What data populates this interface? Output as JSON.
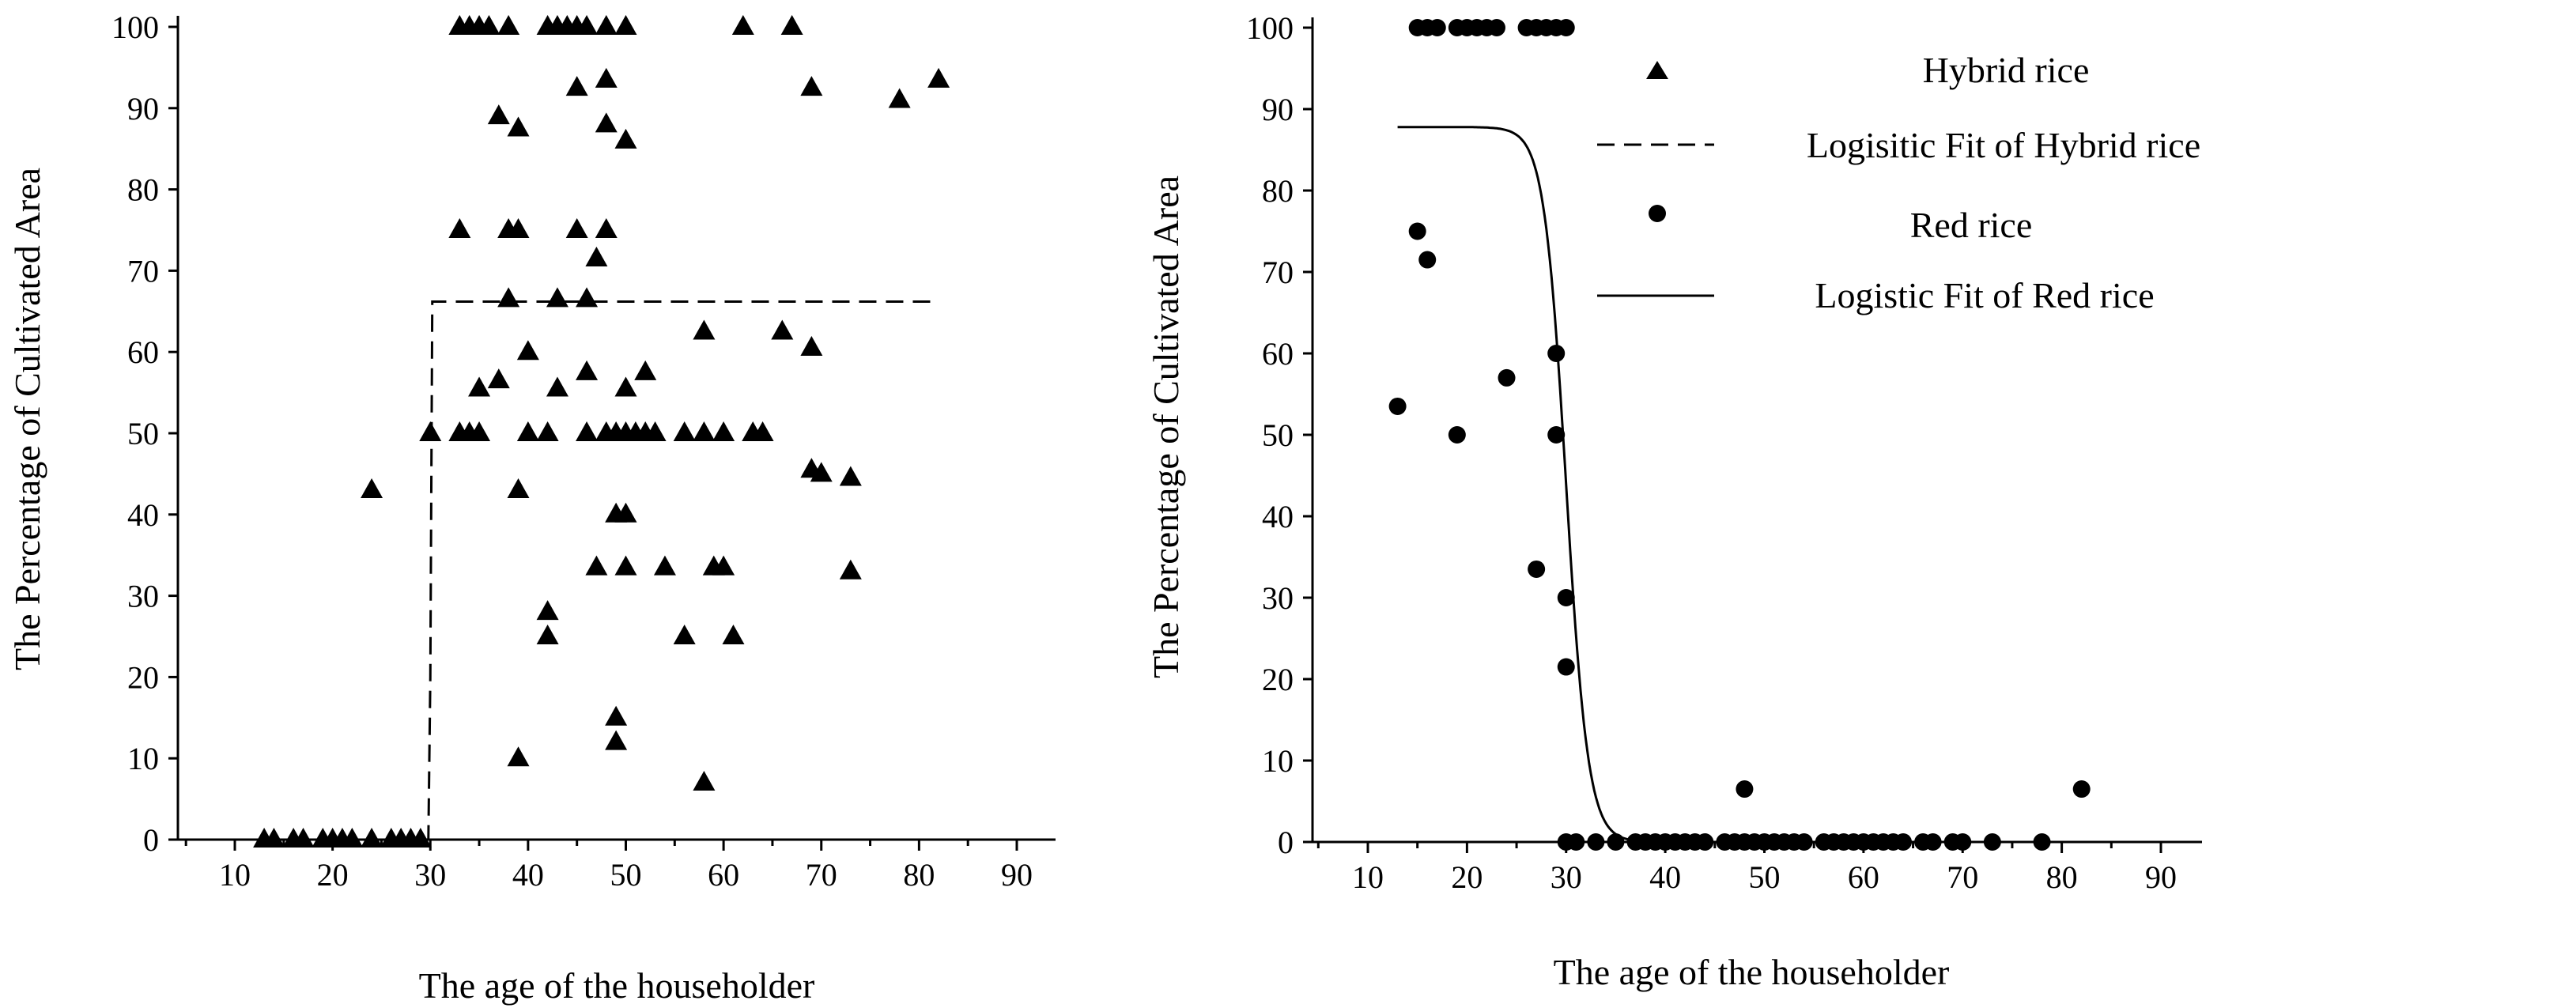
{
  "chart_data": [
    {
      "type": "scatter",
      "xlabel": "The age of the householder",
      "ylabel": "The Percentage of Cultivated Area",
      "xlim": [
        5,
        90
      ],
      "ylim": [
        0,
        105
      ],
      "xticks": [
        10,
        20,
        30,
        40,
        50,
        60,
        70,
        80,
        90
      ],
      "yticks": [
        0,
        10,
        20,
        30,
        40,
        50,
        60,
        70,
        80,
        90,
        100
      ],
      "series": [
        {
          "name": "Hybrid rice",
          "marker": "triangle",
          "points": [
            [
              33,
              100
            ],
            [
              34,
              100
            ],
            [
              35,
              100
            ],
            [
              36,
              100
            ],
            [
              38,
              100
            ],
            [
              42,
              100
            ],
            [
              43,
              100
            ],
            [
              44,
              100
            ],
            [
              45,
              100
            ],
            [
              46,
              100
            ],
            [
              48,
              100
            ],
            [
              50,
              100
            ],
            [
              62,
              100
            ],
            [
              67,
              100
            ],
            [
              45,
              92.5
            ],
            [
              48,
              93.5
            ],
            [
              69,
              92.5
            ],
            [
              78,
              91
            ],
            [
              82,
              93.5
            ],
            [
              37,
              89
            ],
            [
              39,
              87.5
            ],
            [
              48,
              88
            ],
            [
              50,
              86
            ],
            [
              33,
              75
            ],
            [
              38,
              75
            ],
            [
              39,
              75
            ],
            [
              45,
              75
            ],
            [
              48,
              75
            ],
            [
              47,
              71.5
            ],
            [
              38,
              66.5
            ],
            [
              43,
              66.5
            ],
            [
              46,
              66.5
            ],
            [
              58,
              62.5
            ],
            [
              66,
              62.5
            ],
            [
              69,
              60.5
            ],
            [
              40,
              60
            ],
            [
              35,
              55.5
            ],
            [
              37,
              56.5
            ],
            [
              43,
              55.5
            ],
            [
              46,
              57.5
            ],
            [
              50,
              55.5
            ],
            [
              52,
              57.5
            ],
            [
              30,
              50
            ],
            [
              33,
              50
            ],
            [
              34,
              50
            ],
            [
              35,
              50
            ],
            [
              40,
              50
            ],
            [
              42,
              50
            ],
            [
              46,
              50
            ],
            [
              48,
              50
            ],
            [
              49,
              50
            ],
            [
              50,
              50
            ],
            [
              51,
              50
            ],
            [
              52,
              50
            ],
            [
              53,
              50
            ],
            [
              56,
              50
            ],
            [
              58,
              50
            ],
            [
              60,
              50
            ],
            [
              63,
              50
            ],
            [
              64,
              50
            ],
            [
              69,
              45.5
            ],
            [
              70,
              45
            ],
            [
              73,
              44.5
            ],
            [
              24,
              43
            ],
            [
              39,
              43
            ],
            [
              49,
              40
            ],
            [
              50,
              40
            ],
            [
              47,
              33.5
            ],
            [
              50,
              33.5
            ],
            [
              54,
              33.5
            ],
            [
              59,
              33.5
            ],
            [
              60,
              33.5
            ],
            [
              73,
              33
            ],
            [
              42,
              28
            ],
            [
              42,
              25
            ],
            [
              56,
              25
            ],
            [
              61,
              25
            ],
            [
              49,
              15
            ],
            [
              49,
              12
            ],
            [
              39,
              10
            ],
            [
              58,
              7
            ],
            [
              13,
              0
            ],
            [
              14,
              0
            ],
            [
              16,
              0
            ],
            [
              17,
              0
            ],
            [
              19,
              0
            ],
            [
              20,
              0
            ],
            [
              21,
              0
            ],
            [
              22,
              0
            ],
            [
              24,
              0
            ],
            [
              26,
              0
            ],
            [
              27,
              0
            ],
            [
              28,
              0
            ],
            [
              29,
              0
            ]
          ]
        },
        {
          "name": "Logisitic Fit of Hybrid rice",
          "style": "dashed",
          "points": [
            [
              13,
              0
            ],
            [
              29.8,
              0
            ],
            [
              30,
              20
            ],
            [
              30.2,
              66.2
            ],
            [
              82,
              66.2
            ]
          ]
        }
      ]
    },
    {
      "type": "scatter",
      "xlabel": "The age of the householder",
      "ylabel": "The Percentage of Cultivated Area",
      "xlim": [
        5,
        90
      ],
      "ylim": [
        0,
        105
      ],
      "xticks": [
        10,
        20,
        30,
        40,
        50,
        60,
        70,
        80,
        90
      ],
      "yticks": [
        0,
        10,
        20,
        30,
        40,
        50,
        60,
        70,
        80,
        90,
        100
      ],
      "series": [
        {
          "name": "Red rice",
          "marker": "circle",
          "points": [
            [
              15,
              100
            ],
            [
              16,
              100
            ],
            [
              17,
              100
            ],
            [
              19,
              100
            ],
            [
              20,
              100
            ],
            [
              21,
              100
            ],
            [
              22,
              100
            ],
            [
              23,
              100
            ],
            [
              26,
              100
            ],
            [
              27,
              100
            ],
            [
              28,
              100
            ],
            [
              29,
              100
            ],
            [
              30,
              100
            ],
            [
              13,
              53.5
            ],
            [
              15,
              75
            ],
            [
              16,
              71.5
            ],
            [
              19,
              50
            ],
            [
              24,
              57
            ],
            [
              27,
              33.5
            ],
            [
              29,
              60
            ],
            [
              29,
              50
            ],
            [
              30,
              30
            ],
            [
              30,
              21.5
            ],
            [
              48,
              6.5
            ],
            [
              82,
              6.5
            ],
            [
              30,
              0
            ],
            [
              31,
              0
            ],
            [
              33,
              0
            ],
            [
              35,
              0
            ],
            [
              37,
              0
            ],
            [
              38,
              0
            ],
            [
              39,
              0
            ],
            [
              40,
              0
            ],
            [
              41,
              0
            ],
            [
              42,
              0
            ],
            [
              43,
              0
            ],
            [
              44,
              0
            ],
            [
              46,
              0
            ],
            [
              47,
              0
            ],
            [
              48,
              0
            ],
            [
              49,
              0
            ],
            [
              50,
              0
            ],
            [
              51,
              0
            ],
            [
              52,
              0
            ],
            [
              53,
              0
            ],
            [
              54,
              0
            ],
            [
              56,
              0
            ],
            [
              57,
              0
            ],
            [
              58,
              0
            ],
            [
              59,
              0
            ],
            [
              60,
              0
            ],
            [
              61,
              0
            ],
            [
              62,
              0
            ],
            [
              63,
              0
            ],
            [
              64,
              0
            ],
            [
              66,
              0
            ],
            [
              67,
              0
            ],
            [
              69,
              0
            ],
            [
              70,
              0
            ],
            [
              73,
              0
            ],
            [
              78,
              0
            ]
          ]
        },
        {
          "name": "Logistic Fit of Red rice",
          "style": "solid",
          "model": {
            "top": 87.8,
            "bottom": 0,
            "x0": 30,
            "k": 0.9,
            "from": 13,
            "to": 82
          }
        }
      ]
    }
  ],
  "legend": {
    "items": [
      {
        "label": "Hybrid rice",
        "marker": "triangle"
      },
      {
        "label": "Logisitic Fit of Hybrid rice",
        "marker": "dashed-line"
      },
      {
        "label": "Red rice",
        "marker": "circle"
      },
      {
        "label": "Logistic Fit of Red rice",
        "marker": "solid-line"
      }
    ]
  }
}
